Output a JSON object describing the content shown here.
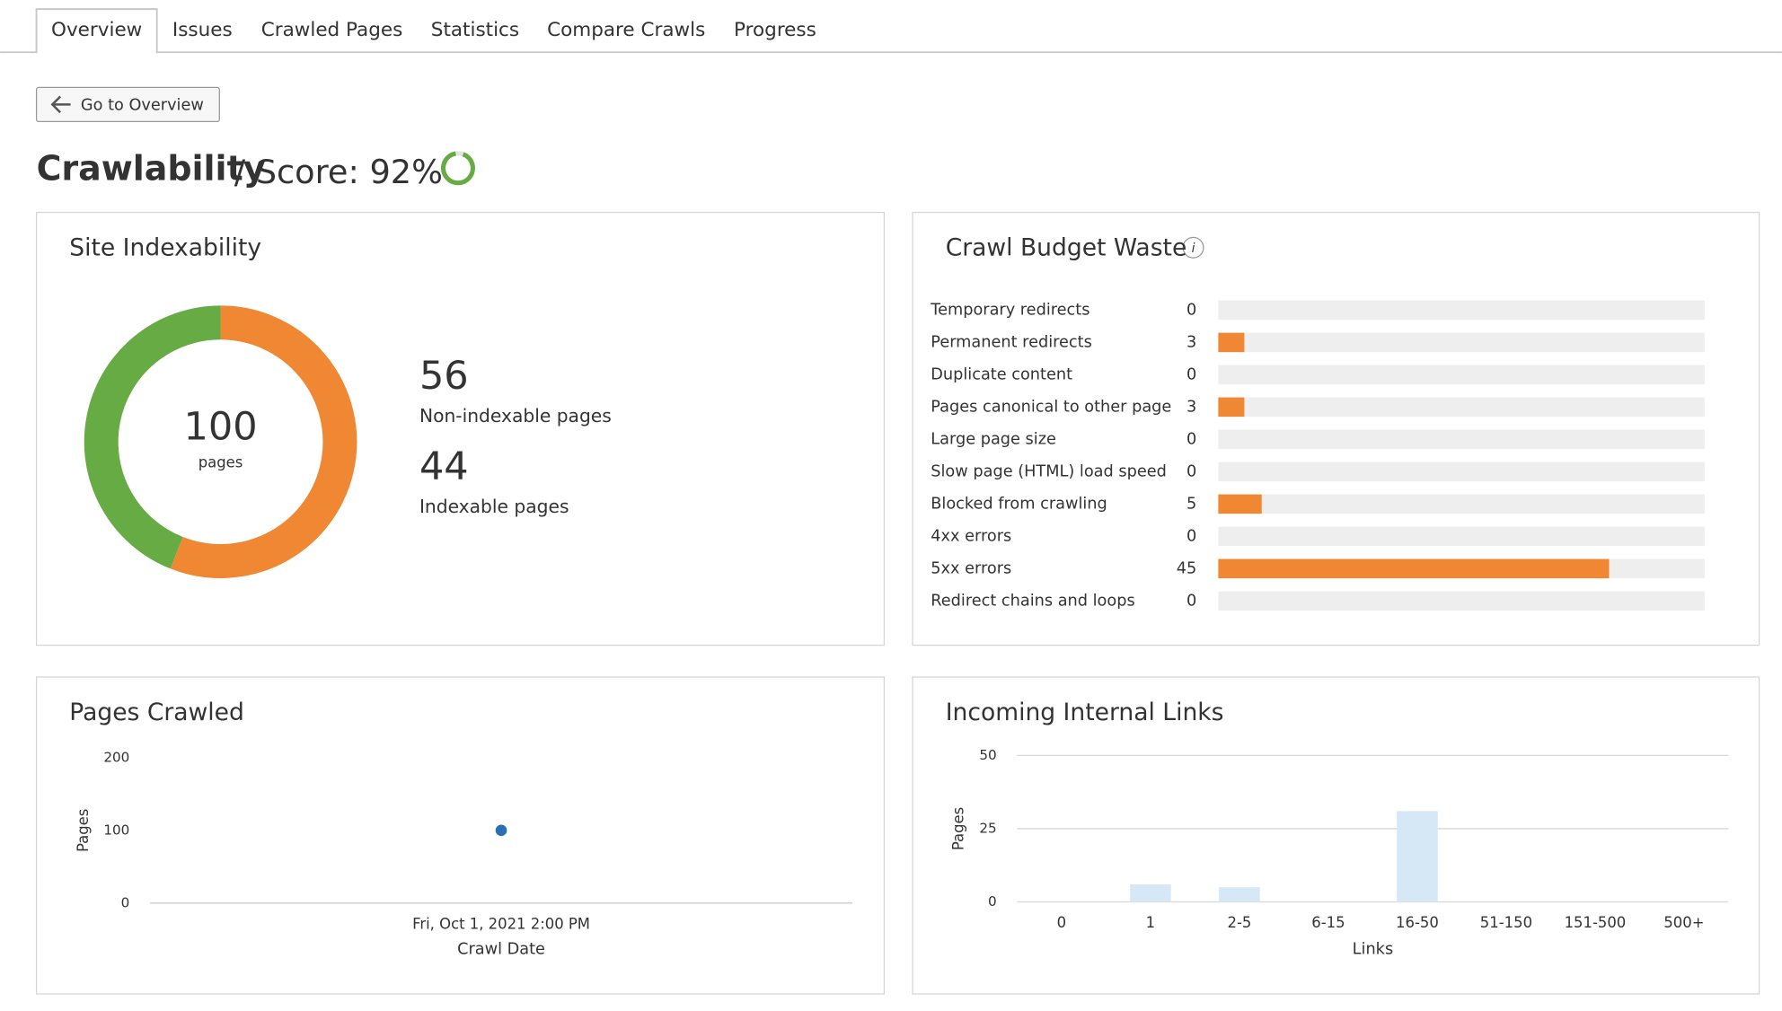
{
  "tabs": [
    "Overview",
    "Issues",
    "Crawled Pages",
    "Statistics",
    "Compare Crawls",
    "Progress"
  ],
  "button": "Go to Overview",
  "header": {
    "title": "Crawlability",
    "score_label": "/ Score: 92%",
    "score": 92
  },
  "chart_data": [
    {
      "type": "donut",
      "title": "Site Indexability",
      "total": 100,
      "total_label": "pages",
      "categories": [
        "Non-indexable pages",
        "Indexable pages"
      ],
      "values": [
        56,
        44
      ],
      "colors": [
        "#f08732",
        "#67ab45"
      ]
    },
    {
      "type": "hbar",
      "title": "Crawl Budget Waste",
      "categories": [
        "Temporary redirects",
        "Permanent redirects",
        "Duplicate content",
        "Pages canonical to other page",
        "Large page size",
        "Slow page (HTML) load speed",
        "Blocked from crawling",
        "4xx errors",
        "5xx errors",
        "Redirect chains and loops"
      ],
      "values": [
        0,
        3,
        0,
        3,
        0,
        0,
        5,
        0,
        45,
        0
      ],
      "xlim": [
        0,
        56
      ],
      "color": "#f08732"
    },
    {
      "type": "scatter",
      "title": "Pages Crawled",
      "categories": [
        "Fri, Oct 1, 2021 2:00 PM"
      ],
      "values": [
        100
      ],
      "ylim": [
        0,
        200
      ],
      "yticks": [
        0,
        100,
        200
      ],
      "ylabel": "Pages",
      "xlabel": "Crawl Date",
      "color": "#2a6fb5",
      "grid": false
    },
    {
      "type": "bar",
      "title": "Incoming Internal Links",
      "categories": [
        "0",
        "1",
        "2-5",
        "6-15",
        "16-50",
        "51-150",
        "151-500",
        "500+"
      ],
      "values": [
        0,
        6,
        5,
        0,
        31,
        0,
        0,
        0
      ],
      "ylim": [
        0,
        50
      ],
      "yticks": [
        0,
        25,
        50
      ],
      "ylabel": "Pages",
      "xlabel": "Links",
      "color": "#d6e8f6",
      "grid": true
    }
  ]
}
